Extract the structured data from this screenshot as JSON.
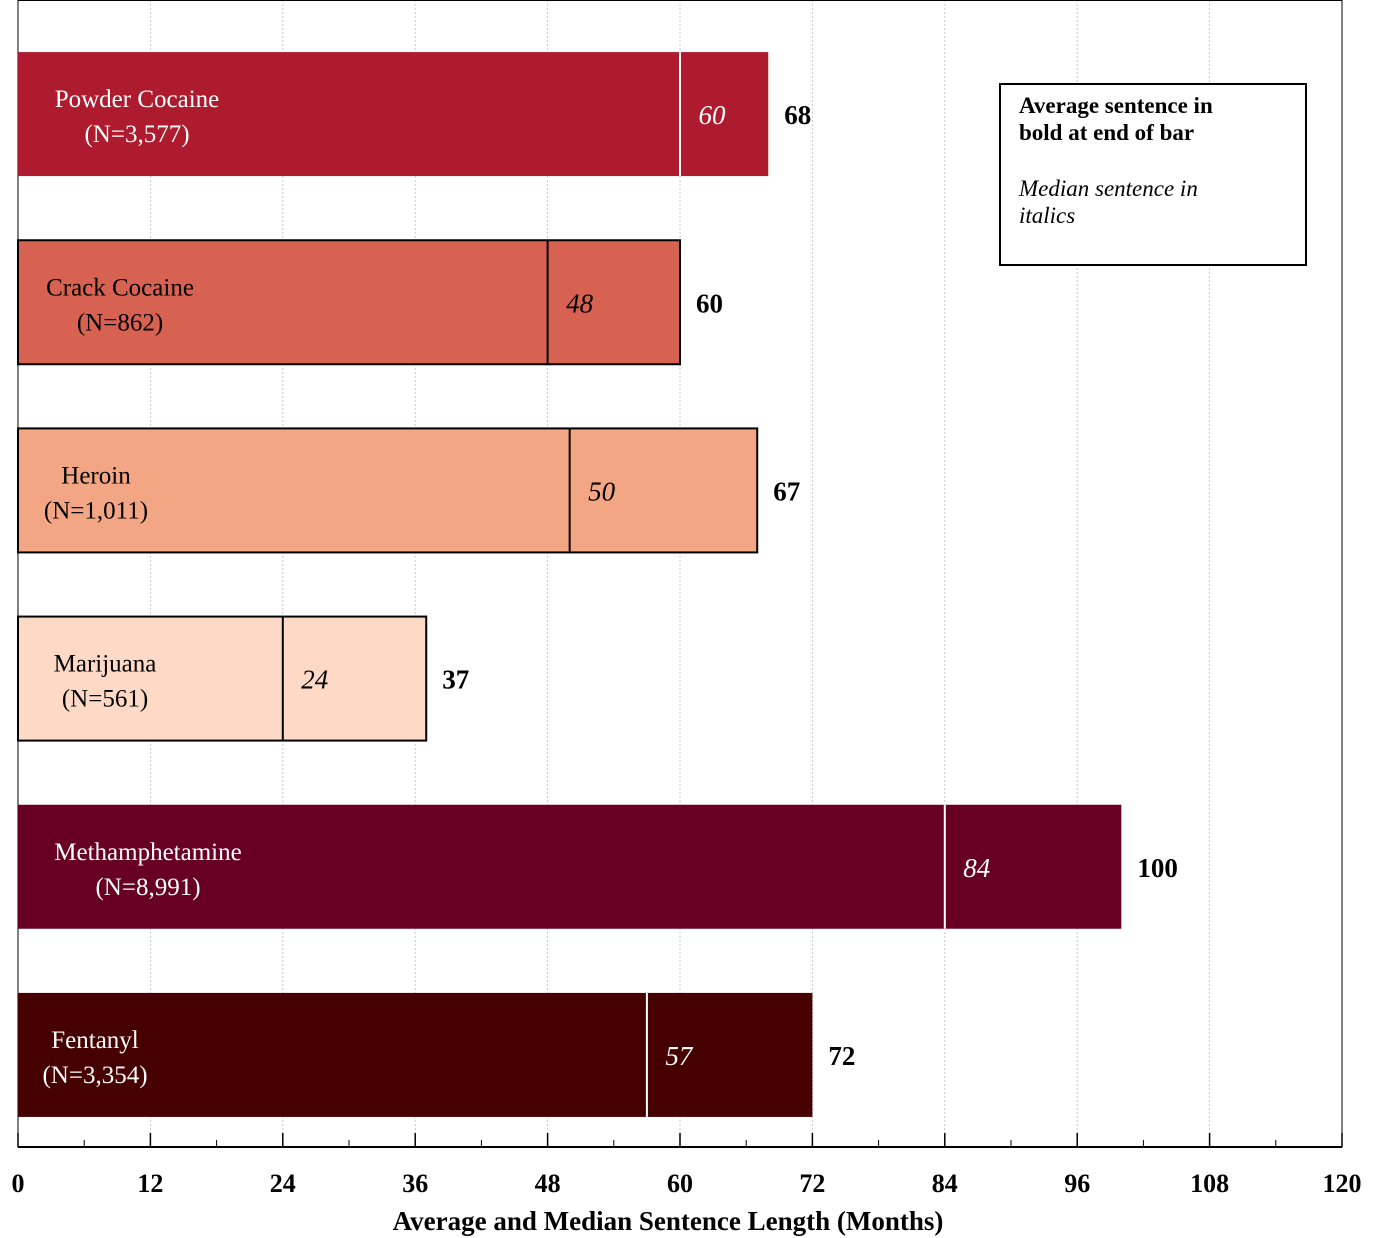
{
  "chart_data": {
    "type": "bar",
    "orientation": "horizontal",
    "title": "",
    "xlabel": "Average and Median Sentence Length (Months)",
    "ylabel": "",
    "xlim": [
      0,
      120
    ],
    "x_ticks": [
      "0",
      "12",
      "24",
      "36",
      "48",
      "60",
      "72",
      "84",
      "96",
      "108",
      "120"
    ],
    "grid": "vertical dotted",
    "categories": [
      {
        "name": "Powder Cocaine",
        "n_label": "(N=3,577)",
        "average": 68,
        "median": 60,
        "color": "#AE1A2E",
        "text_color": "#ffffff",
        "edge": false
      },
      {
        "name": "Crack Cocaine",
        "n_label": "(N=862)",
        "average": 60,
        "median": 48,
        "color": "#D86251",
        "text_color": "#000000",
        "edge": true
      },
      {
        "name": "Heroin",
        "n_label": "(N=1,011)",
        "average": 67,
        "median": 50,
        "color": "#F2A683",
        "text_color": "#000000",
        "edge": true
      },
      {
        "name": "Marijuana",
        "n_label": "(N=561)",
        "average": 37,
        "median": 24,
        "color": "#FDD9C6",
        "text_color": "#000000",
        "edge": true
      },
      {
        "name": "Methamphetamine",
        "n_label": "(N=8,991)",
        "average": 100,
        "median": 84,
        "color": "#680023",
        "text_color": "#ffffff",
        "edge": false
      },
      {
        "name": "Fentanyl",
        "n_label": "(N=3,354)",
        "average": 72,
        "median": 57,
        "color": "#470000",
        "text_color": "#ffffff",
        "edge": false
      }
    ],
    "legend": {
      "position": "top-right",
      "line1": "Average sentence in",
      "line2": "bold at end of bar",
      "line3": "Median sentence in",
      "line4": "italics"
    }
  }
}
